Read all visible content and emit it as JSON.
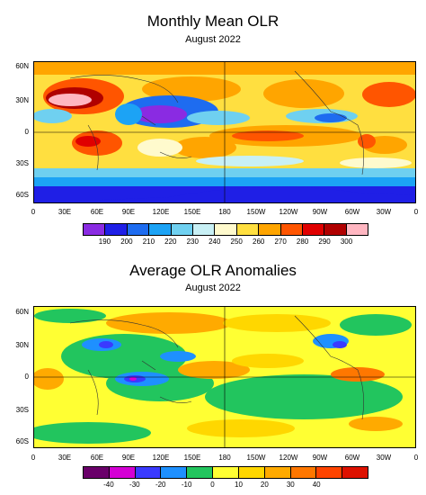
{
  "panels": [
    {
      "title": "Monthly Mean OLR",
      "subtitle": "August 2022",
      "lat_labels": [
        "60N",
        "30N",
        "0",
        "30S",
        "60S"
      ],
      "lon_labels": [
        "0",
        "30E",
        "60E",
        "90E",
        "120E",
        "150E",
        "180",
        "150W",
        "120W",
        "90W",
        "60W",
        "30W",
        "0"
      ],
      "colorbar": {
        "colors": [
          "#8a2be2",
          "#1f1fe6",
          "#1e6cf0",
          "#1ca3f5",
          "#6fd0f0",
          "#c8f0f5",
          "#fffacd",
          "#ffdf40",
          "#ffa500",
          "#ff5500",
          "#e00000",
          "#b00000",
          "#ffb6c1"
        ],
        "labels": [
          "190",
          "200",
          "210",
          "220",
          "230",
          "240",
          "250",
          "260",
          "270",
          "280",
          "290",
          "300"
        ]
      }
    },
    {
      "title": "Average OLR Anomalies",
      "subtitle": "August 2022",
      "lat_labels": [
        "60N",
        "30N",
        "0",
        "30S",
        "60S"
      ],
      "lon_labels": [
        "0",
        "30E",
        "60E",
        "90E",
        "120E",
        "150E",
        "180",
        "150W",
        "120W",
        "90W",
        "60W",
        "30W",
        "0"
      ],
      "colorbar": {
        "colors": [
          "#6a006a",
          "#d400d4",
          "#3a3aff",
          "#1e90ff",
          "#22c55e",
          "#ffff33",
          "#ffd700",
          "#ffaa00",
          "#ff7700",
          "#ff4400",
          "#dd1100"
        ],
        "labels": [
          "-40",
          "-30",
          "-20",
          "-10",
          "0",
          "10",
          "20",
          "30",
          "40"
        ]
      }
    }
  ]
}
